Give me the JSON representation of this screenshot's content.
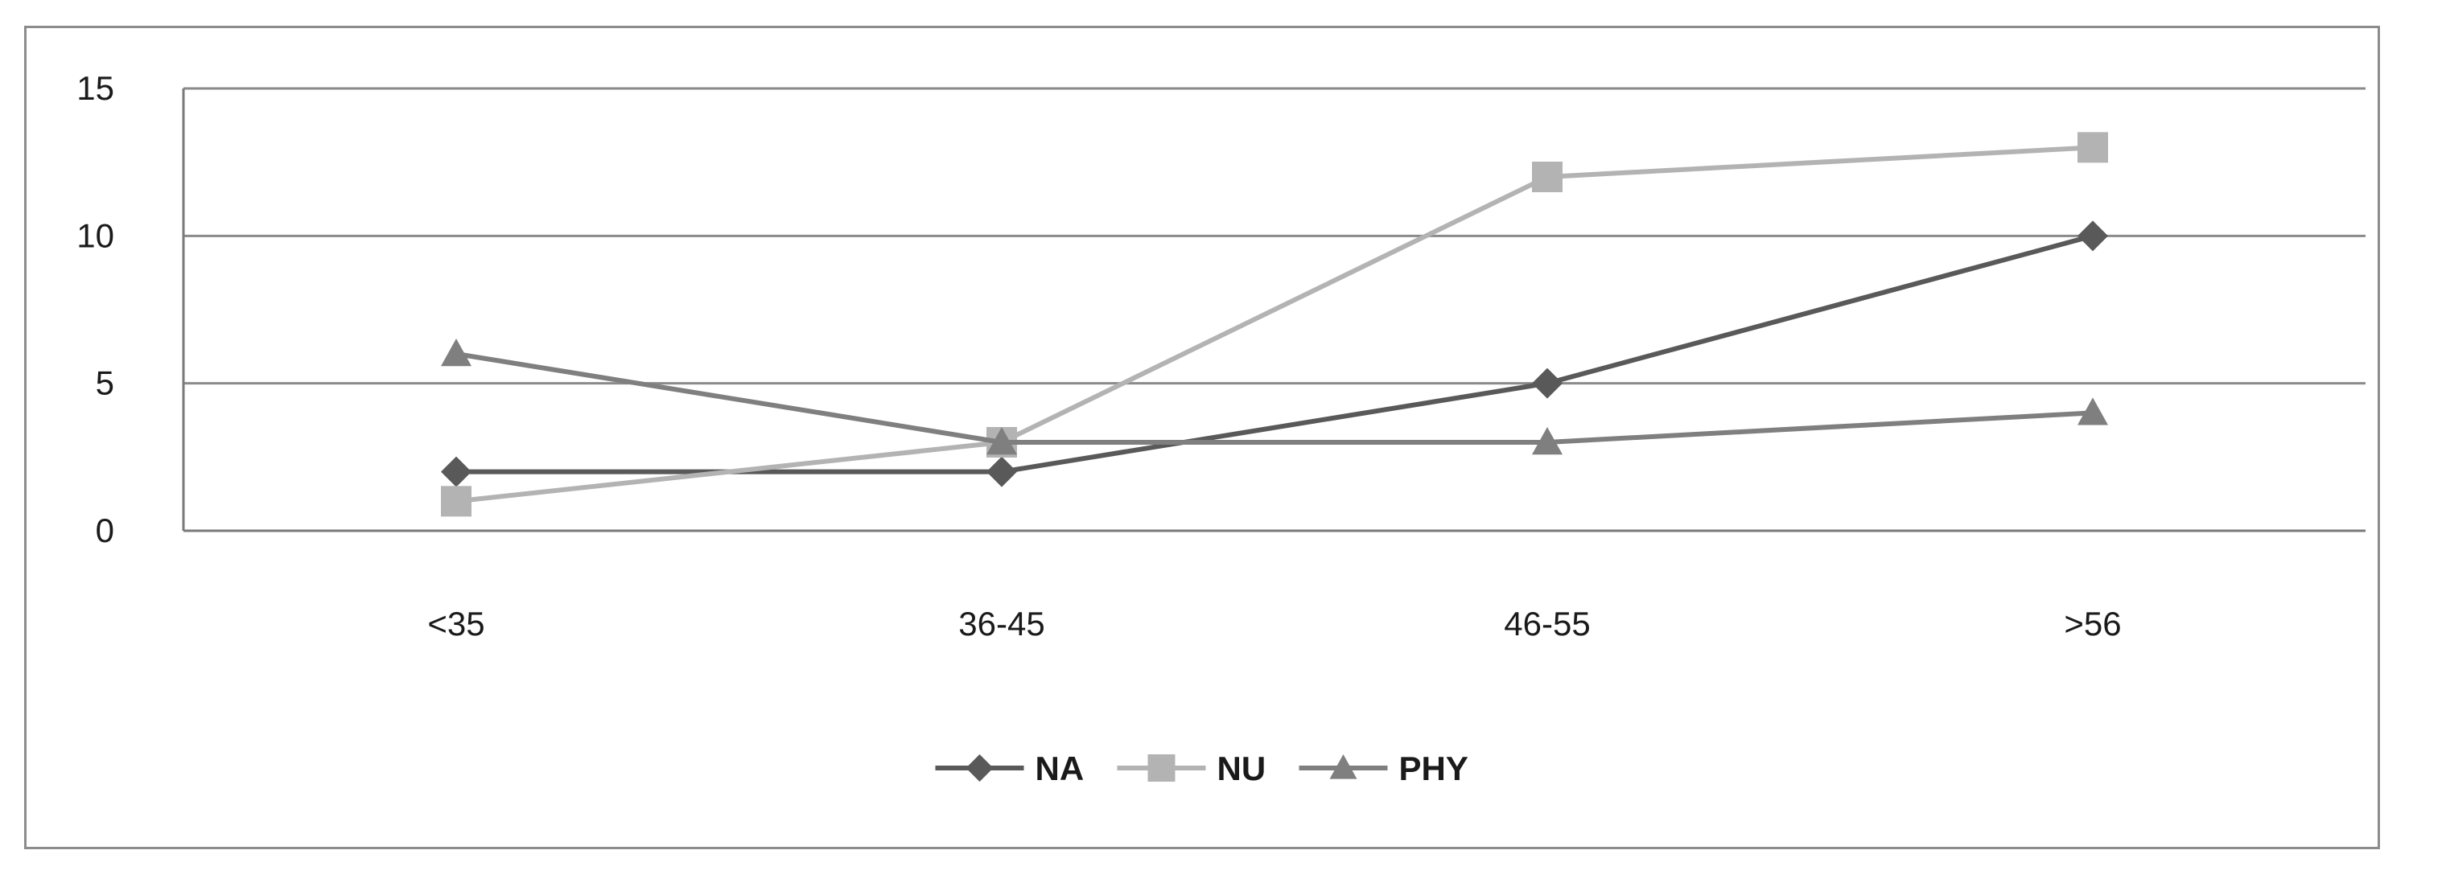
{
  "chart_data": {
    "type": "line",
    "title": "",
    "xlabel": "",
    "ylabel": "",
    "categories": [
      "<35",
      "36-45",
      "46-55",
      ">56"
    ],
    "ylim": [
      0,
      15
    ],
    "yticks": [
      0,
      5,
      10,
      15
    ],
    "grid": true,
    "legend_position": "bottom",
    "series": [
      {
        "name": "NA",
        "values": [
          2,
          2,
          5,
          10
        ],
        "color": "#595959",
        "marker": "diamond"
      },
      {
        "name": "NU",
        "values": [
          1,
          3,
          12,
          13
        ],
        "color": "#b3b3b3",
        "marker": "square"
      },
      {
        "name": "PHY",
        "values": [
          6,
          3,
          3,
          4
        ],
        "color": "#7f7f7f",
        "marker": "triangle"
      }
    ]
  }
}
